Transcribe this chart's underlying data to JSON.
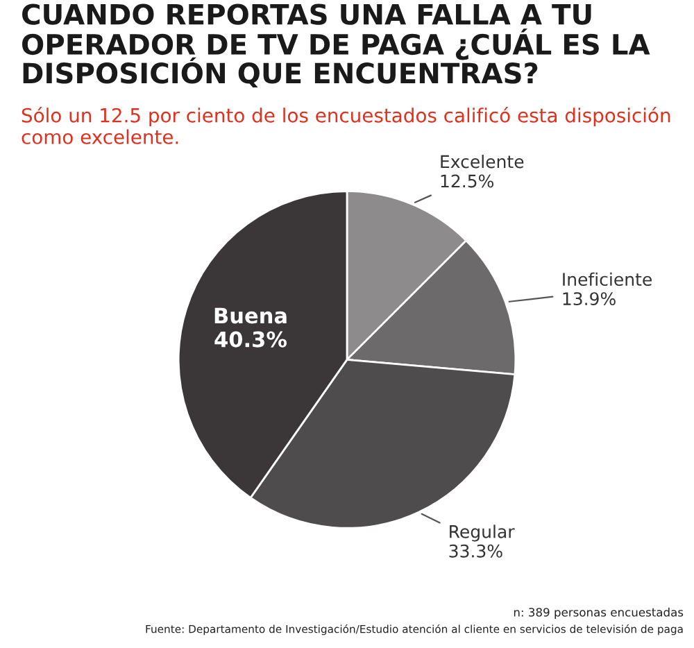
{
  "chart_data": {
    "type": "pie",
    "title": "CUANDO REPORTAS UNA FALLA A TU OPERADOR DE TV DE PAGA ¿CUÁL ES LA DISPOSICIÓN QUE ENCUENTRAS?",
    "subtitle": "Sólo un 12.5 por ciento de los encuestados calificó esta disposición como excelente.",
    "categories": [
      "Excelente",
      "Ineficiente",
      "Regular",
      "Buena"
    ],
    "values": [
      12.5,
      13.9,
      33.3,
      40.3
    ],
    "value_labels": [
      "12.5%",
      "13.9%",
      "33.3%",
      "40.3%"
    ],
    "colors": [
      "#8d8b8c",
      "#6c6a6b",
      "#4e4c4d",
      "#3b3738"
    ],
    "annotations": [
      "n: 389 personas encuestadas",
      "Fuente: Departamento de Investigación/Estudio atención al cliente en servicios de televisión de paga"
    ]
  }
}
